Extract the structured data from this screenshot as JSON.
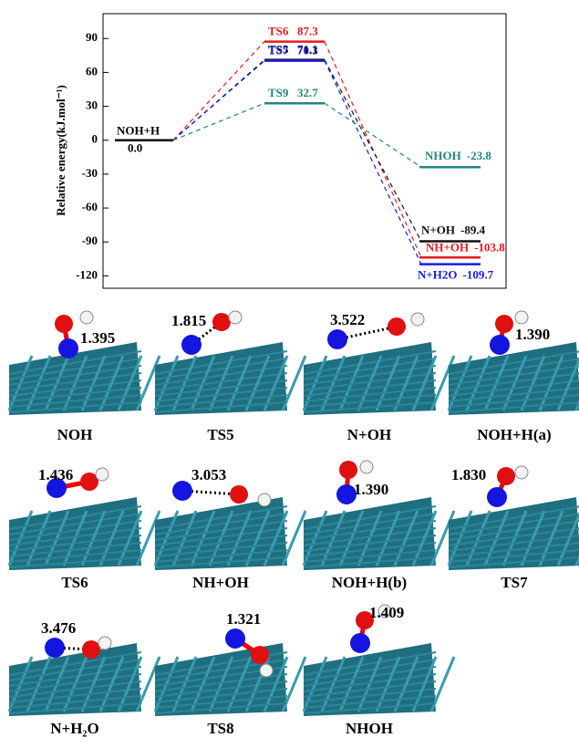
{
  "chart_data": {
    "type": "energy",
    "ylabel": "Relative energy(kJ.mol⁻¹)",
    "ylim": [
      -131,
      112
    ],
    "yticks": [
      -120,
      -90,
      -60,
      -30,
      0,
      30,
      60,
      90
    ],
    "reactant": {
      "name": "NOH+H",
      "value": 0,
      "value_label": "0.0"
    },
    "series": [
      {
        "color": "#e8191c",
        "ts": {
          "name": "TS6",
          "value": 87.3
        },
        "product": {
          "name": "NH+OH",
          "value": -103.8
        }
      },
      {
        "color": "#111111",
        "ts": {
          "name": "TS5",
          "value": 71.1
        },
        "product": {
          "name": "N+OH",
          "value": -89.4
        }
      },
      {
        "color": "#1a1ae6",
        "ts": {
          "name": "TS7",
          "value": 70.3
        },
        "product": {
          "name": "N+H2O",
          "value": -109.7
        }
      },
      {
        "color": "#23867e",
        "ts": {
          "name": "TS9",
          "value": 32.7
        },
        "product": {
          "name": "NHOH",
          "value": -23.8
        }
      }
    ]
  },
  "structures": [
    {
      "caption": "NOH",
      "distance": "1.395"
    },
    {
      "caption": "TS5",
      "distance": "1.815"
    },
    {
      "caption": "N+OH",
      "distance": "3.522"
    },
    {
      "caption": "NOH+H(a)",
      "distance": "1.390"
    },
    {
      "caption": "TS6",
      "distance": "1.436"
    },
    {
      "caption": "NH+OH",
      "distance": "3.053"
    },
    {
      "caption": "NOH+H(b)",
      "distance": "1.390"
    },
    {
      "caption": "TS7",
      "distance": "1.830"
    },
    {
      "caption": "N+H₂O",
      "distance": "3.476"
    },
    {
      "caption": "TS8",
      "distance": "1.321"
    },
    {
      "caption": "NHOH",
      "distance": "1.409"
    }
  ]
}
